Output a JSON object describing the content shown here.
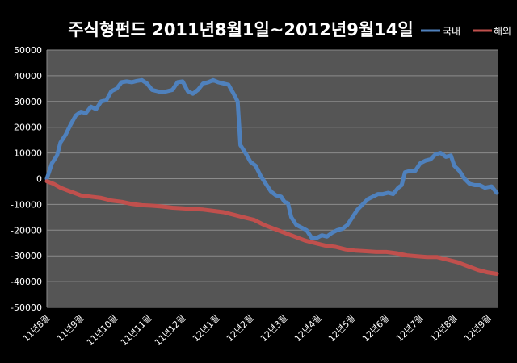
{
  "chart_data": {
    "type": "line",
    "title": "주식형펀드  2011년8월1일~2012년9월14일",
    "xlabel": "",
    "ylabel": "",
    "ylim": [
      -50000,
      50000
    ],
    "y_ticks": [
      50000,
      40000,
      30000,
      20000,
      10000,
      0,
      -10000,
      -20000,
      -30000,
      -40000,
      -50000
    ],
    "x_tick_labels": [
      "11년8월",
      "11년9월",
      "11년10월",
      "11년11월",
      "11년12월",
      "12년1월",
      "12년2월",
      "12년3월",
      "12년4월",
      "12년5월",
      "12년6월",
      "12년7월",
      "12년8월",
      "12년9월"
    ],
    "grid": true,
    "legend_position": "top-right",
    "series": [
      {
        "name": "국내",
        "color": "#4F81BD",
        "points": [
          [
            0,
            0
          ],
          [
            0.15,
            6000
          ],
          [
            0.3,
            9000
          ],
          [
            0.4,
            14000
          ],
          [
            0.55,
            17000
          ],
          [
            0.7,
            21000
          ],
          [
            0.85,
            24500
          ],
          [
            1.0,
            26000
          ],
          [
            1.15,
            25500
          ],
          [
            1.3,
            28000
          ],
          [
            1.45,
            27000
          ],
          [
            1.6,
            30000
          ],
          [
            1.75,
            30500
          ],
          [
            1.9,
            34000
          ],
          [
            2.05,
            35000
          ],
          [
            2.2,
            37500
          ],
          [
            2.35,
            37800
          ],
          [
            2.5,
            37500
          ],
          [
            2.65,
            38000
          ],
          [
            2.8,
            38300
          ],
          [
            2.95,
            37000
          ],
          [
            3.1,
            34500
          ],
          [
            3.25,
            34000
          ],
          [
            3.4,
            33500
          ],
          [
            3.55,
            34000
          ],
          [
            3.7,
            34500
          ],
          [
            3.85,
            37500
          ],
          [
            4.0,
            37800
          ],
          [
            4.15,
            34000
          ],
          [
            4.3,
            33000
          ],
          [
            4.45,
            34500
          ],
          [
            4.6,
            37000
          ],
          [
            4.75,
            37500
          ],
          [
            4.9,
            38300
          ],
          [
            5.05,
            37500
          ],
          [
            5.2,
            37000
          ],
          [
            5.35,
            36500
          ],
          [
            5.5,
            33000
          ],
          [
            5.62,
            30000
          ],
          [
            5.7,
            13000
          ],
          [
            5.85,
            10000
          ],
          [
            6.0,
            6500
          ],
          [
            6.15,
            5000
          ],
          [
            6.3,
            1000
          ],
          [
            6.45,
            -2000
          ],
          [
            6.6,
            -5000
          ],
          [
            6.75,
            -6500
          ],
          [
            6.9,
            -7000
          ],
          [
            7.0,
            -9000
          ],
          [
            7.1,
            -9500
          ],
          [
            7.2,
            -15000
          ],
          [
            7.35,
            -18000
          ],
          [
            7.5,
            -19000
          ],
          [
            7.65,
            -20000
          ],
          [
            7.8,
            -23000
          ],
          [
            7.95,
            -23000
          ],
          [
            8.1,
            -22000
          ],
          [
            8.25,
            -22500
          ],
          [
            8.4,
            -21000
          ],
          [
            8.55,
            -20000
          ],
          [
            8.7,
            -19500
          ],
          [
            8.85,
            -18000
          ],
          [
            9.0,
            -15000
          ],
          [
            9.15,
            -12000
          ],
          [
            9.3,
            -10000
          ],
          [
            9.45,
            -8000
          ],
          [
            9.6,
            -7000
          ],
          [
            9.75,
            -6000
          ],
          [
            9.9,
            -6000
          ],
          [
            10.05,
            -5500
          ],
          [
            10.2,
            -6000
          ],
          [
            10.35,
            -3500
          ],
          [
            10.45,
            -2500
          ],
          [
            10.55,
            2500
          ],
          [
            10.7,
            3000
          ],
          [
            10.85,
            3000
          ],
          [
            11.0,
            6000
          ],
          [
            11.15,
            7000
          ],
          [
            11.3,
            7500
          ],
          [
            11.45,
            9500
          ],
          [
            11.6,
            10000
          ],
          [
            11.75,
            8500
          ],
          [
            11.9,
            9000
          ],
          [
            12.0,
            5000
          ],
          [
            12.15,
            3000
          ],
          [
            12.3,
            0
          ],
          [
            12.45,
            -2000
          ],
          [
            12.6,
            -2500
          ],
          [
            12.75,
            -2500
          ],
          [
            12.9,
            -3500
          ],
          [
            13.1,
            -3000
          ],
          [
            13.25,
            -5500
          ]
        ]
      },
      {
        "name": "해외",
        "color": "#C0504D",
        "points": [
          [
            0,
            -1000
          ],
          [
            0.2,
            -2000
          ],
          [
            0.4,
            -3500
          ],
          [
            0.6,
            -4500
          ],
          [
            0.8,
            -5500
          ],
          [
            1.0,
            -6500
          ],
          [
            1.3,
            -7000
          ],
          [
            1.6,
            -7500
          ],
          [
            1.9,
            -8500
          ],
          [
            2.2,
            -9000
          ],
          [
            2.5,
            -9800
          ],
          [
            2.8,
            -10300
          ],
          [
            3.1,
            -10500
          ],
          [
            3.4,
            -10800
          ],
          [
            3.7,
            -11300
          ],
          [
            4.0,
            -11500
          ],
          [
            4.3,
            -11800
          ],
          [
            4.6,
            -12000
          ],
          [
            4.9,
            -12500
          ],
          [
            5.2,
            -13000
          ],
          [
            5.5,
            -14000
          ],
          [
            5.8,
            -15000
          ],
          [
            6.1,
            -16000
          ],
          [
            6.4,
            -18000
          ],
          [
            6.7,
            -19500
          ],
          [
            7.0,
            -21000
          ],
          [
            7.3,
            -22500
          ],
          [
            7.6,
            -24000
          ],
          [
            7.9,
            -25000
          ],
          [
            8.2,
            -26000
          ],
          [
            8.5,
            -26500
          ],
          [
            8.8,
            -27500
          ],
          [
            9.1,
            -28000
          ],
          [
            9.4,
            -28200
          ],
          [
            9.7,
            -28500
          ],
          [
            10.0,
            -28500
          ],
          [
            10.3,
            -29000
          ],
          [
            10.6,
            -29800
          ],
          [
            10.9,
            -30200
          ],
          [
            11.2,
            -30500
          ],
          [
            11.5,
            -30500
          ],
          [
            11.8,
            -31500
          ],
          [
            12.1,
            -32500
          ],
          [
            12.4,
            -34000
          ],
          [
            12.7,
            -35500
          ],
          [
            13.0,
            -36500
          ],
          [
            13.25,
            -37000
          ]
        ]
      }
    ]
  }
}
